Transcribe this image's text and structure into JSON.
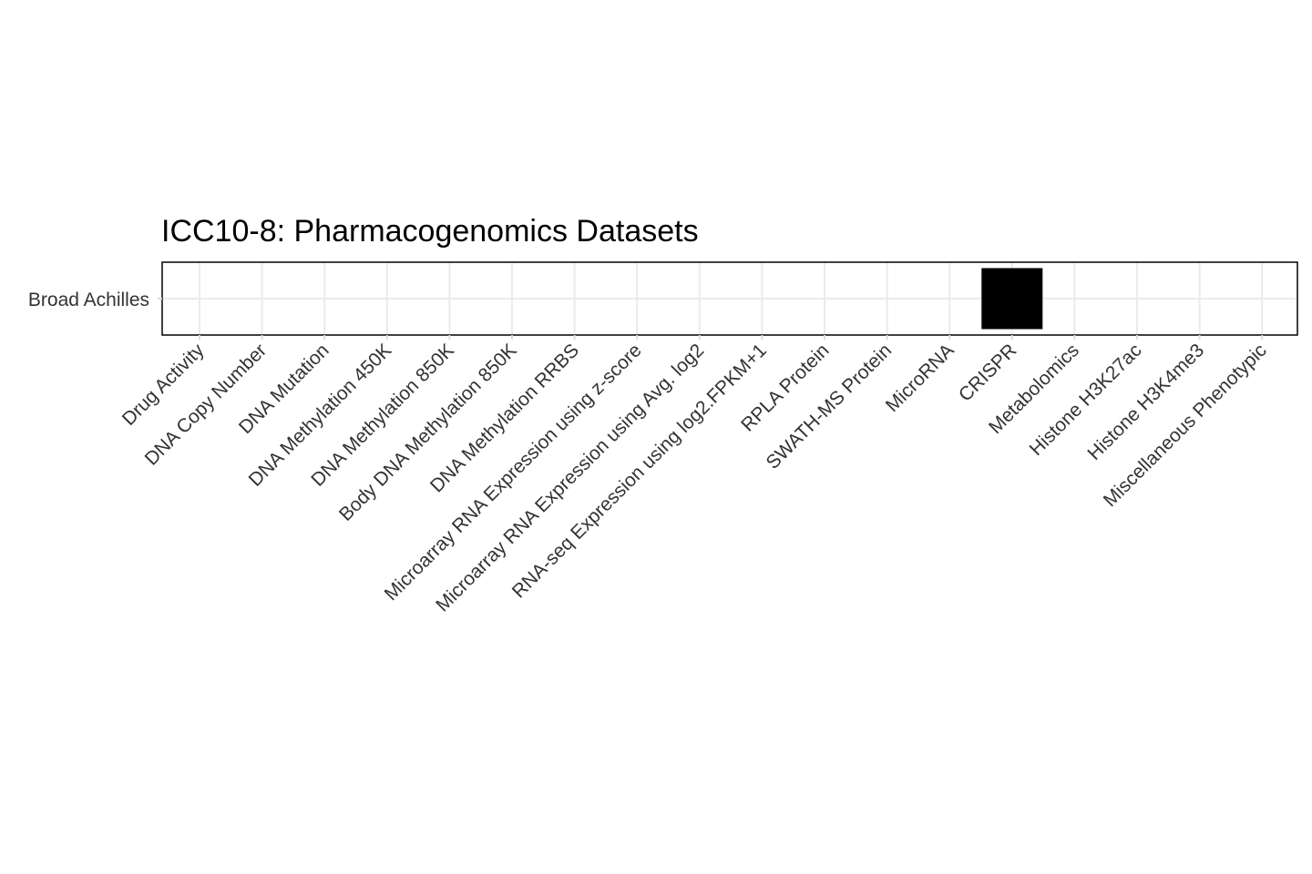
{
  "chart_data": {
    "type": "heatmap",
    "title": "ICC10-8: Pharmacogenomics Datasets",
    "xlabel": "",
    "ylabel": "",
    "x_categories": [
      "Drug Activity",
      "DNA Copy Number",
      "DNA Mutation",
      "DNA Methylation 450K",
      "DNA Methylation 850K",
      "Body DNA Methylation 850K",
      "DNA Methylation RRBS",
      "Microarray RNA Expression using z-score",
      "Microarray RNA Expression using Avg. log2",
      "RNA-seq Expression using log2.FPKM+1",
      "RPLA Protein",
      "SWATH-MS Protein",
      "MicroRNA",
      "CRISPR",
      "Metabolomics",
      "Histone H3K27ac",
      "Histone H3K4me3",
      "Miscellaneous Phenotypic"
    ],
    "y_categories": [
      "Broad Achilles"
    ],
    "cells": [
      {
        "x": "CRISPR",
        "y": "Broad Achilles",
        "present": true
      }
    ],
    "grid": true,
    "legend": "none",
    "colors": {
      "cell_fill": "#000000",
      "panel_border": "#000000",
      "grid": "#ebebeb",
      "title": "#000000",
      "tick_label": "#333333"
    }
  }
}
